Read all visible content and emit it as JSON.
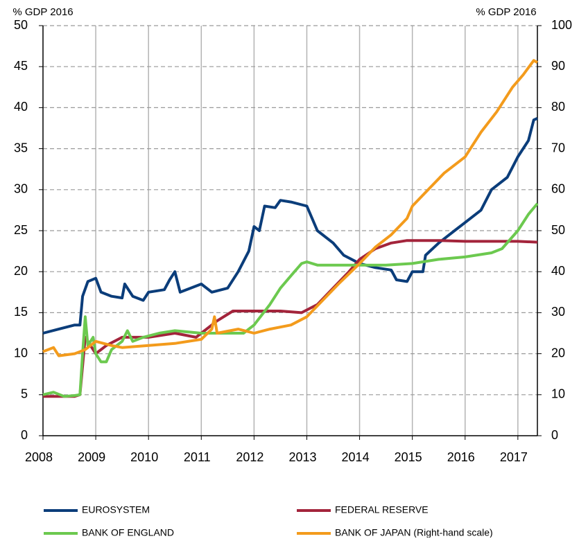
{
  "chart_data": {
    "type": "line",
    "y_label": "% GDP 2016",
    "y2_label": "% GDP 2016",
    "xlim": [
      2008,
      2017.37
    ],
    "xticks": [
      2008,
      2009,
      2010,
      2011,
      2012,
      2013,
      2014,
      2015,
      2016,
      2017
    ],
    "ylim": [
      0,
      50
    ],
    "yticks": [
      0,
      5,
      10,
      15,
      20,
      25,
      30,
      35,
      40,
      45,
      50
    ],
    "y2lim": [
      0,
      100
    ],
    "y2ticks": [
      0,
      10,
      20,
      30,
      40,
      50,
      60,
      70,
      80,
      90,
      100
    ],
    "grid": true,
    "series": [
      {
        "name": "EUROSYSTEM",
        "color": "#0b3d7a",
        "x": [
          2008.0,
          2008.3,
          2008.6,
          2008.7,
          2008.75,
          2008.85,
          2009.0,
          2009.1,
          2009.3,
          2009.5,
          2009.55,
          2009.7,
          2009.9,
          2010.0,
          2010.3,
          2010.4,
          2010.5,
          2010.6,
          2010.8,
          2011.0,
          2011.2,
          2011.5,
          2011.7,
          2011.9,
          2012.0,
          2012.1,
          2012.2,
          2012.4,
          2012.5,
          2012.7,
          2013.0,
          2013.2,
          2013.5,
          2013.7,
          2014.0,
          2014.3,
          2014.6,
          2014.7,
          2014.9,
          2015.0,
          2015.2,
          2015.25,
          2015.5,
          2015.8,
          2016.0,
          2016.3,
          2016.5,
          2016.8,
          2017.0,
          2017.2,
          2017.3,
          2017.37
        ],
        "values": [
          12.5,
          13,
          13.5,
          13.5,
          17,
          18.8,
          19.2,
          17.5,
          17,
          16.8,
          18.5,
          17,
          16.5,
          17.5,
          17.8,
          19,
          20,
          17.5,
          18,
          18.5,
          17.5,
          18,
          20,
          22.5,
          25.5,
          25,
          28,
          27.8,
          28.7,
          28.5,
          28,
          25,
          23.5,
          22,
          21,
          20.5,
          20.2,
          19,
          18.8,
          20,
          20,
          22,
          23.5,
          25,
          26,
          27.5,
          30,
          31.5,
          34,
          36,
          38.5,
          38.7
        ]
      },
      {
        "name": "FEDERAL RESERVE",
        "color": "#a3243b",
        "x": [
          2008.0,
          2008.6,
          2008.7,
          2008.8,
          2008.9,
          2009.0,
          2009.2,
          2009.5,
          2010.0,
          2010.5,
          2010.9,
          2011.0,
          2011.3,
          2011.6,
          2012.0,
          2012.5,
          2012.9,
          2013.2,
          2013.5,
          2013.8,
          2014.0,
          2014.3,
          2014.6,
          2014.9,
          2015.5,
          2016.0,
          2016.5,
          2017.0,
          2017.37
        ],
        "values": [
          4.8,
          4.8,
          5,
          12,
          11,
          10,
          11,
          12,
          12,
          12.5,
          12,
          12.5,
          14,
          15.2,
          15.2,
          15.2,
          15,
          16,
          18,
          20,
          21.5,
          22.8,
          23.5,
          23.8,
          23.8,
          23.7,
          23.7,
          23.7,
          23.6
        ]
      },
      {
        "name": "BANK OF ENGLAND",
        "color": "#6cc94f",
        "x": [
          2008.0,
          2008.2,
          2008.4,
          2008.6,
          2008.7,
          2008.75,
          2008.8,
          2008.85,
          2008.95,
          2009.0,
          2009.1,
          2009.2,
          2009.3,
          2009.5,
          2009.6,
          2009.7,
          2009.9,
          2010.2,
          2010.5,
          2011.0,
          2011.5,
          2011.8,
          2012.0,
          2012.3,
          2012.5,
          2012.7,
          2012.9,
          2013.0,
          2013.2,
          2014.0,
          2014.5,
          2015.0,
          2015.5,
          2016.0,
          2016.5,
          2016.7,
          2017.0,
          2017.2,
          2017.37
        ],
        "values": [
          5,
          5.3,
          4.8,
          4.9,
          5,
          10,
          14.5,
          11,
          12,
          10,
          9,
          9,
          10.5,
          11.5,
          12.8,
          11.5,
          12,
          12.5,
          12.8,
          12.5,
          12.5,
          12.5,
          13.5,
          16,
          18,
          19.5,
          21,
          21.2,
          20.8,
          20.8,
          20.8,
          21,
          21.5,
          21.8,
          22.3,
          22.8,
          25,
          27,
          28.3
        ]
      },
      {
        "name": "BANK OF JAPAN (Right-hand scale)",
        "color": "#f39b1c",
        "axis": "y2",
        "x": [
          2008.0,
          2008.2,
          2008.3,
          2008.6,
          2008.8,
          2009.0,
          2009.3,
          2009.5,
          2010.0,
          2010.5,
          2011.0,
          2011.2,
          2011.25,
          2011.3,
          2011.7,
          2012.0,
          2012.3,
          2012.7,
          2013.0,
          2013.3,
          2013.6,
          2014.0,
          2014.3,
          2014.6,
          2014.9,
          2015.0,
          2015.3,
          2015.6,
          2016.0,
          2016.3,
          2016.6,
          2016.9,
          2017.1,
          2017.3,
          2017.37
        ],
        "values": [
          20.5,
          21.5,
          19.5,
          20,
          21,
          23,
          22,
          21.5,
          22,
          22.5,
          23.5,
          26,
          29,
          25,
          26,
          25,
          26,
          27,
          29,
          33,
          37,
          42,
          46,
          49,
          53,
          56,
          60,
          64,
          68,
          74,
          79,
          85,
          88,
          91.5,
          91
        ]
      }
    ]
  }
}
